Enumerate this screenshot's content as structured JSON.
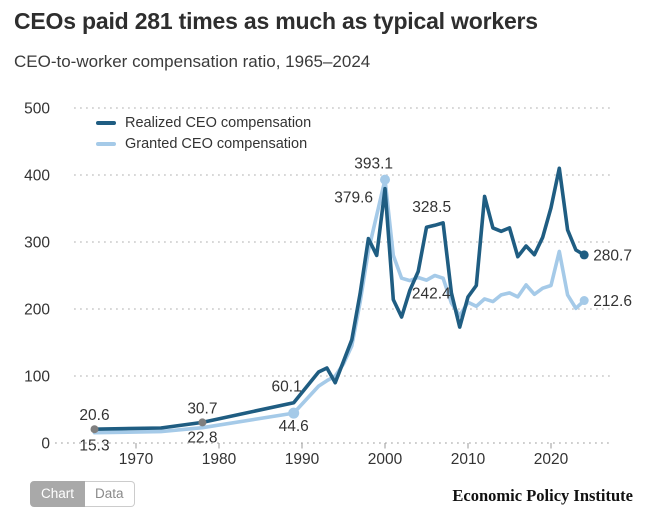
{
  "header": {
    "title": "CEOs paid 281 times as much as typical workers",
    "subtitle": "CEO-to-worker compensation ratio, 1965–2024"
  },
  "footer": {
    "tabs": [
      {
        "label": "Chart",
        "active": true
      },
      {
        "label": "Data",
        "active": false
      }
    ],
    "branding": "Economic Policy Institute"
  },
  "colors": {
    "realized": "#1f5d82",
    "granted": "#a5cae8",
    "marker_gray": "#7f7f7f",
    "grid": "#cccccc",
    "axis": "#bfbfbf",
    "text": "#333333"
  },
  "chart_data": {
    "type": "line",
    "title": "CEOs paid 281 times as much as typical workers",
    "xlabel": "",
    "ylabel": "",
    "xlim": [
      1963.5,
      2027.5
    ],
    "ylim": [
      0,
      500
    ],
    "xticks": [
      1970,
      1980,
      1990,
      2000,
      2010,
      2020
    ],
    "yticks": [
      0,
      100,
      200,
      300,
      400,
      500
    ],
    "grid": "horizontal-dotted",
    "legend_position": "top-left-inside",
    "x": [
      1965,
      1973,
      1978,
      1989,
      1992,
      1993,
      1994,
      1995,
      1996,
      1997,
      1998,
      1999,
      2000,
      2001,
      2002,
      2003,
      2004,
      2005,
      2006,
      2007,
      2008,
      2009,
      2010,
      2011,
      2012,
      2013,
      2014,
      2015,
      2016,
      2017,
      2018,
      2019,
      2020,
      2021,
      2022,
      2023,
      2024
    ],
    "series": [
      {
        "name": "Realized CEO compensation",
        "color": "#1f5d82",
        "values": [
          20.6,
          22.4,
          30.7,
          60.1,
          106,
          112,
          90,
          122,
          154,
          223,
          305,
          280,
          379.6,
          214,
          188,
          228,
          256,
          322,
          325,
          328.5,
          224,
          173,
          218,
          235,
          368,
          321,
          316,
          321,
          278,
          294,
          281,
          307,
          351,
          410,
          318,
          288,
          280.7
        ]
      },
      {
        "name": "Granted CEO compensation",
        "color": "#a5cae8",
        "values": [
          15.3,
          17,
          22.8,
          44.6,
          85,
          93,
          100,
          118,
          145,
          210,
          287,
          340,
          393.1,
          280,
          246,
          242.4,
          247,
          243,
          250,
          246,
          209,
          190,
          210,
          204,
          215,
          211,
          221,
          224,
          218,
          236,
          222,
          231,
          235,
          286,
          221,
          201,
          212.6
        ]
      }
    ],
    "annotations": [
      {
        "text": "20.6",
        "year": 1965,
        "value": 20.6,
        "placement": "above"
      },
      {
        "text": "15.3",
        "year": 1965,
        "value": 15.3,
        "placement": "below"
      },
      {
        "text": "30.7",
        "year": 1978,
        "value": 30.7,
        "placement": "above"
      },
      {
        "text": "22.8",
        "year": 1978,
        "value": 22.8,
        "placement": "below-tight"
      },
      {
        "text": "60.1",
        "year": 1989,
        "value": 60.1,
        "placement": "above-left"
      },
      {
        "text": "44.6",
        "year": 1989,
        "value": 44.6,
        "placement": "below"
      },
      {
        "text": "393.1",
        "year": 2000,
        "value": 393.1,
        "placement": "above-left"
      },
      {
        "text": "379.6",
        "year": 2000,
        "value": 379.6,
        "placement": "left-below"
      },
      {
        "text": "328.5",
        "year": 2007,
        "value": 328.5,
        "placement": "above-left"
      },
      {
        "text": "242.4",
        "year": 2003,
        "value": 242.4,
        "placement": "below-right"
      },
      {
        "text": "280.7",
        "year": 2024,
        "value": 280.7,
        "placement": "right"
      },
      {
        "text": "212.6",
        "year": 2024,
        "value": 212.6,
        "placement": "right"
      }
    ],
    "markers": [
      {
        "year": 1965,
        "value": 20.6,
        "color": "#7f7f7f",
        "r": 4
      },
      {
        "year": 1978,
        "value": 30.7,
        "color": "#7f7f7f",
        "r": 4
      },
      {
        "year": 1989,
        "value": 44.6,
        "color": "#a5cae8",
        "r": 5.5
      },
      {
        "year": 2000,
        "value": 393.1,
        "color": "#a5cae8",
        "r": 5
      },
      {
        "year": 2024,
        "value": 280.7,
        "color": "#1f5d82",
        "r": 4.5
      },
      {
        "year": 2024,
        "value": 212.6,
        "color": "#a5cae8",
        "r": 4.5
      }
    ]
  }
}
